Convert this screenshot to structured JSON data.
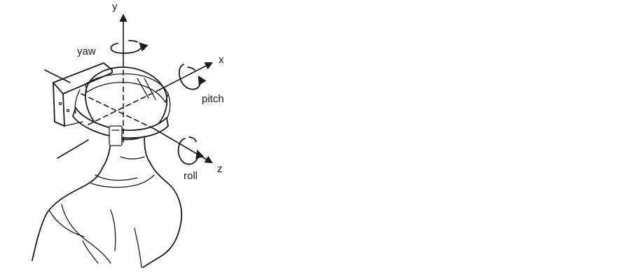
{
  "diagram": {
    "axes": {
      "y": "y",
      "x": "x",
      "z": "z"
    },
    "rotations": {
      "yaw": "yaw",
      "pitch": "pitch",
      "roll": "roll"
    }
  },
  "colors": {
    "ink": "#1a1a1a",
    "background": "#ffffff"
  }
}
